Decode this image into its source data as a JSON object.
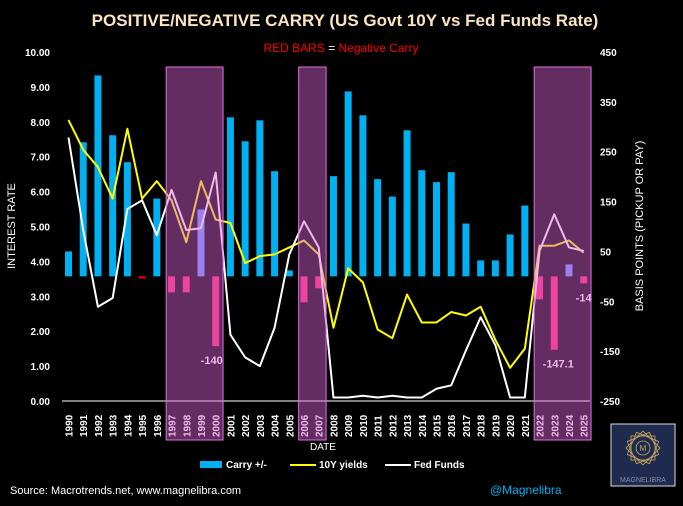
{
  "chart_data": {
    "type": "bar",
    "title": "POSITIVE/NEGATIVE CARRY (US Govt 10Y vs Fed Funds Rate)",
    "subtitle": {
      "part1": "RED BARS",
      "eq": " = ",
      "part2": "Negative Carry"
    },
    "xlabel": "DATE",
    "ylabel": "INTEREST RATE",
    "y2label": "BASIS POINTS (PICKUP OR PAY)",
    "ylim": [
      0,
      10
    ],
    "y2lim": [
      -250,
      450
    ],
    "yticks": [
      "0.00",
      "1.00",
      "2.00",
      "3.00",
      "4.00",
      "5.00",
      "6.00",
      "7.00",
      "8.00",
      "9.00",
      "10.00"
    ],
    "y2ticks": [
      "-250",
      "-150",
      "-50",
      "50",
      "150",
      "250",
      "350",
      "450"
    ],
    "categories": [
      "1990",
      "1991",
      "1992",
      "1993",
      "1994",
      "1995",
      "1996",
      "1997",
      "1998",
      "1999",
      "2000",
      "2001",
      "2002",
      "2003",
      "2004",
      "2005",
      "2006",
      "2007",
      "2008",
      "2009",
      "2010",
      "2011",
      "2012",
      "2013",
      "2014",
      "2015",
      "2016",
      "2017",
      "2018",
      "2019",
      "2020",
      "2021",
      "2022",
      "2023",
      "2024",
      "2025"
    ],
    "series": [
      {
        "name": "Carry +/-",
        "axis": "right",
        "type": "bar",
        "values": [
          50,
          269,
          403,
          283,
          229,
          -4,
          156,
          -32,
          -32,
          134,
          -140,
          319,
          271,
          313,
          211,
          12,
          -52,
          -24,
          201,
          371,
          323,
          195,
          160,
          293,
          213,
          189,
          209,
          106,
          32,
          32,
          84,
          142,
          -46,
          -147.1,
          24,
          -14
        ]
      },
      {
        "name": "10Y yields",
        "axis": "left",
        "type": "line",
        "values": [
          8.05,
          7.2,
          6.7,
          5.8,
          7.8,
          5.8,
          6.3,
          5.75,
          4.55,
          6.3,
          5.2,
          5.1,
          3.95,
          4.15,
          4.2,
          4.4,
          4.6,
          4.2,
          2.1,
          3.8,
          3.4,
          2.05,
          1.8,
          3.05,
          2.25,
          2.25,
          2.55,
          2.45,
          2.7,
          1.75,
          0.95,
          1.5,
          4.45,
          4.45,
          4.6,
          4.25
        ]
      },
      {
        "name": "Fed Funds",
        "axis": "left",
        "type": "line",
        "values": [
          7.55,
          4.9,
          2.7,
          2.95,
          5.5,
          5.75,
          4.75,
          6.05,
          4.9,
          4.95,
          6.55,
          1.9,
          1.25,
          1.0,
          2.1,
          4.2,
          5.15,
          4.4,
          0.1,
          0.1,
          0.15,
          0.1,
          0.15,
          0.1,
          0.1,
          0.35,
          0.45,
          1.45,
          2.4,
          1.6,
          0.1,
          0.1,
          4.3,
          5.35,
          4.4,
          4.3
        ]
      }
    ],
    "highlight_periods": [
      [
        "1997",
        "2000"
      ],
      [
        "2006",
        "2007"
      ],
      [
        "2022",
        "2025"
      ]
    ],
    "annotations": [
      {
        "year": "2000",
        "text": "-140"
      },
      {
        "year": "2023",
        "text": "-147.1"
      },
      {
        "year": "2025",
        "text": "-14"
      }
    ],
    "legend_position": "bottom",
    "colors": {
      "positive": "#00b0f0",
      "positive_highlight": "#6699ff",
      "negative": "#ff2a6d",
      "negative_small": "#ff0000",
      "tenyear": "#ffff00",
      "fedfunds": "#ffffff",
      "highlight_fill": "rgba(220,100,215,0.45)",
      "highlight_border": "#e070e0",
      "title": "#fbe5c0",
      "red_text": "#ff0000",
      "handle": "#00b0f0"
    }
  },
  "footer": {
    "source": "Source: Macrotrends.net, www.magnelibra.com",
    "handle": "@Magnelibra",
    "logo_text": "MAGNELIBRA"
  }
}
